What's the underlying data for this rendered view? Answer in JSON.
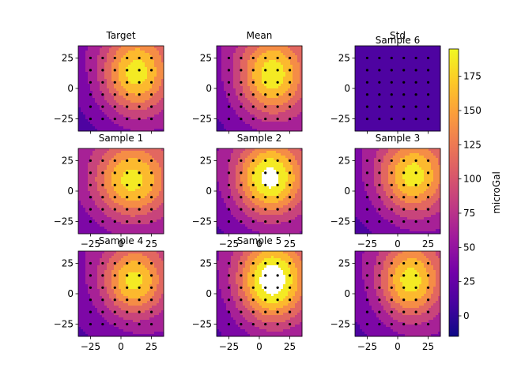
{
  "chart_data": {
    "type": "heatmap",
    "colorbar": {
      "label": "microGal",
      "range": [
        -15,
        195
      ],
      "ticks": [
        0,
        25,
        50,
        75,
        100,
        125,
        150,
        175
      ],
      "tick_labels": [
        "0",
        "25",
        "50",
        "75",
        "100",
        "125",
        "150",
        "175"
      ],
      "colormap": [
        "#0d0887",
        "#46039f",
        "#7201a8",
        "#9c179e",
        "#bd3786",
        "#d8576b",
        "#ed7953",
        "#fb9f3a",
        "#fdca26",
        "#f0f921"
      ],
      "over_color": "#ffffff"
    },
    "x_ticks": [
      -25,
      0,
      25
    ],
    "x_tick_labels": [
      "−25",
      "0",
      "25"
    ],
    "y_ticks": [
      25,
      0,
      -25
    ],
    "y_tick_labels": [
      "25",
      "0",
      "−25"
    ],
    "axis_range": {
      "x": [
        -35,
        35
      ],
      "y": [
        -35,
        35
      ]
    },
    "stations": {
      "x": [
        -25,
        -15,
        -5,
        5,
        15,
        25
      ],
      "y": [
        -25,
        -15,
        -5,
        5,
        15,
        25
      ]
    },
    "panels": [
      {
        "title": "Target",
        "show_xticks": false,
        "field": {
          "peak": 180,
          "cx": 12,
          "cy": 12,
          "sx": 20,
          "sy": 24,
          "floor": 35,
          "slope": 0.3
        }
      },
      {
        "title": "Mean",
        "show_xticks": false,
        "field": {
          "peak": 185,
          "cx": 10,
          "cy": 10,
          "sx": 20,
          "sy": 24,
          "floor": 38,
          "slope": 0.3
        }
      },
      {
        "title": "Std",
        "show_xticks": false,
        "uniform": 8,
        "subtitle": "Sample 6"
      },
      {
        "title": "Sample 1",
        "show_xticks": true,
        "field": {
          "peak": 180,
          "cx": 8,
          "cy": 8,
          "sx": 22,
          "sy": 22,
          "floor": 45,
          "slope": 0.3
        }
      },
      {
        "title": "Sample 2",
        "show_xticks": true,
        "field": {
          "peak": 205,
          "cx": 8,
          "cy": 10,
          "sx": 20,
          "sy": 22,
          "floor": 40,
          "slope": 0.3
        }
      },
      {
        "title": "Sample 3",
        "show_xticks": true,
        "field": {
          "peak": 180,
          "cx": 12,
          "cy": 12,
          "sx": 20,
          "sy": 22,
          "floor": 38,
          "slope": 0.3
        }
      },
      {
        "title": "Sample 4",
        "show_xticks": true,
        "field": {
          "peak": 178,
          "cx": 10,
          "cy": 10,
          "sx": 18,
          "sy": 20,
          "floor": 42,
          "slope": 0.3
        }
      },
      {
        "title": "Sample 5",
        "show_xticks": true,
        "field": {
          "peak": 215,
          "cx": 10,
          "cy": 10,
          "sx": 20,
          "sy": 24,
          "floor": 40,
          "slope": 0.3
        }
      },
      {
        "title": "",
        "show_xticks": true,
        "field": {
          "peak": 182,
          "cx": 10,
          "cy": 10,
          "sx": 18,
          "sy": 22,
          "floor": 40,
          "slope": 0.3
        }
      }
    ]
  }
}
